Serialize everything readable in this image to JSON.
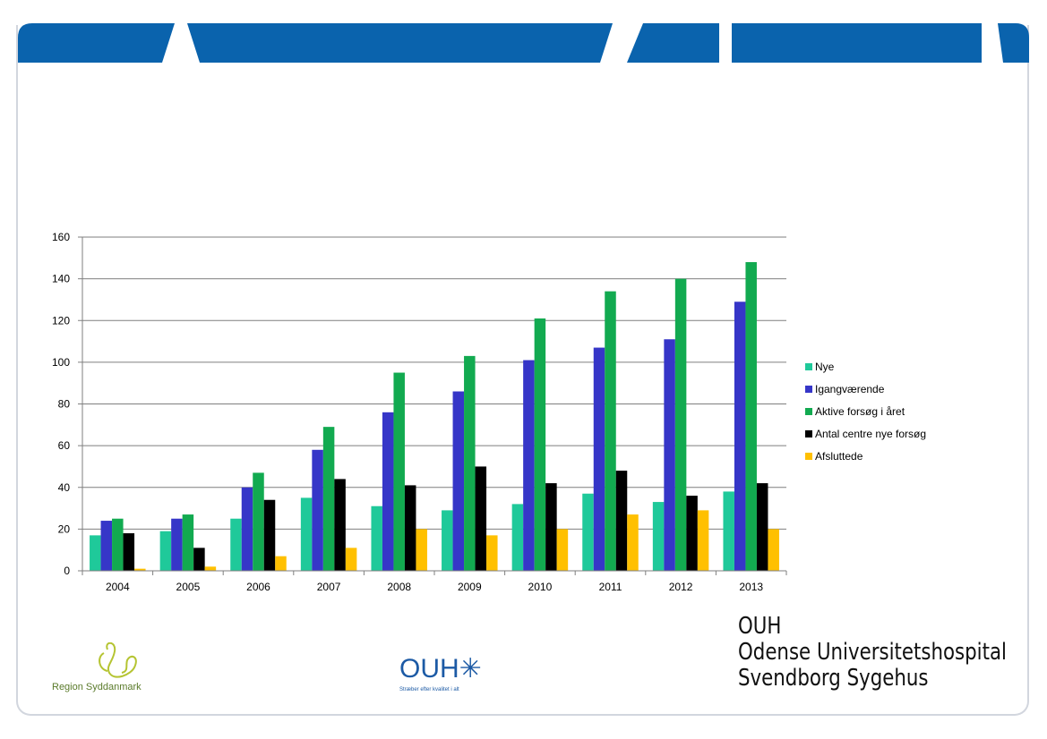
{
  "colors": {
    "header_blue": "#0a63ad",
    "frame_gray": "#d2d6de",
    "nye": "#1fc99a",
    "igangvaerende": "#3636c8",
    "aktive": "#12aa50",
    "antal": "#000000",
    "afsluttede": "#ffc000"
  },
  "chart_data": {
    "type": "bar",
    "categories": [
      "2004",
      "2005",
      "2006",
      "2007",
      "2008",
      "2009",
      "2010",
      "2011",
      "2012",
      "2013"
    ],
    "ylim": [
      0,
      160
    ],
    "yticks": [
      "0",
      "20",
      "40",
      "60",
      "80",
      "100",
      "120",
      "140",
      "160"
    ],
    "grid": true,
    "legend_position": "right",
    "series": [
      {
        "name": "Nye",
        "color": "#1fc99a",
        "values": [
          17,
          19,
          25,
          35,
          31,
          29,
          32,
          37,
          33,
          38
        ]
      },
      {
        "name": "Igangværende",
        "color": "#3636c8",
        "values": [
          24,
          25,
          40,
          58,
          76,
          86,
          101,
          107,
          111,
          129
        ]
      },
      {
        "name": "Aktive forsøg i året",
        "color": "#12aa50",
        "values": [
          25,
          27,
          47,
          69,
          95,
          103,
          121,
          134,
          140,
          148
        ]
      },
      {
        "name": "Antal centre nye forsøg",
        "color": "#000000",
        "values": [
          18,
          11,
          34,
          44,
          41,
          50,
          42,
          48,
          36,
          42
        ]
      },
      {
        "name": "Afsluttede",
        "color": "#ffc000",
        "values": [
          1,
          2,
          7,
          11,
          20,
          17,
          20,
          27,
          29,
          20
        ]
      }
    ]
  },
  "footer": {
    "title_line1": "OUH",
    "title_line2": "Odense Universitetshospital",
    "title_line3": "Svendborg Sygehus",
    "region_logo_text": "Region Syddanmark",
    "ouh_logo_text": "OUH",
    "ouh_logo_star": "✳",
    "ouh_tagline": "Stræber efter kvalitet i alt"
  }
}
